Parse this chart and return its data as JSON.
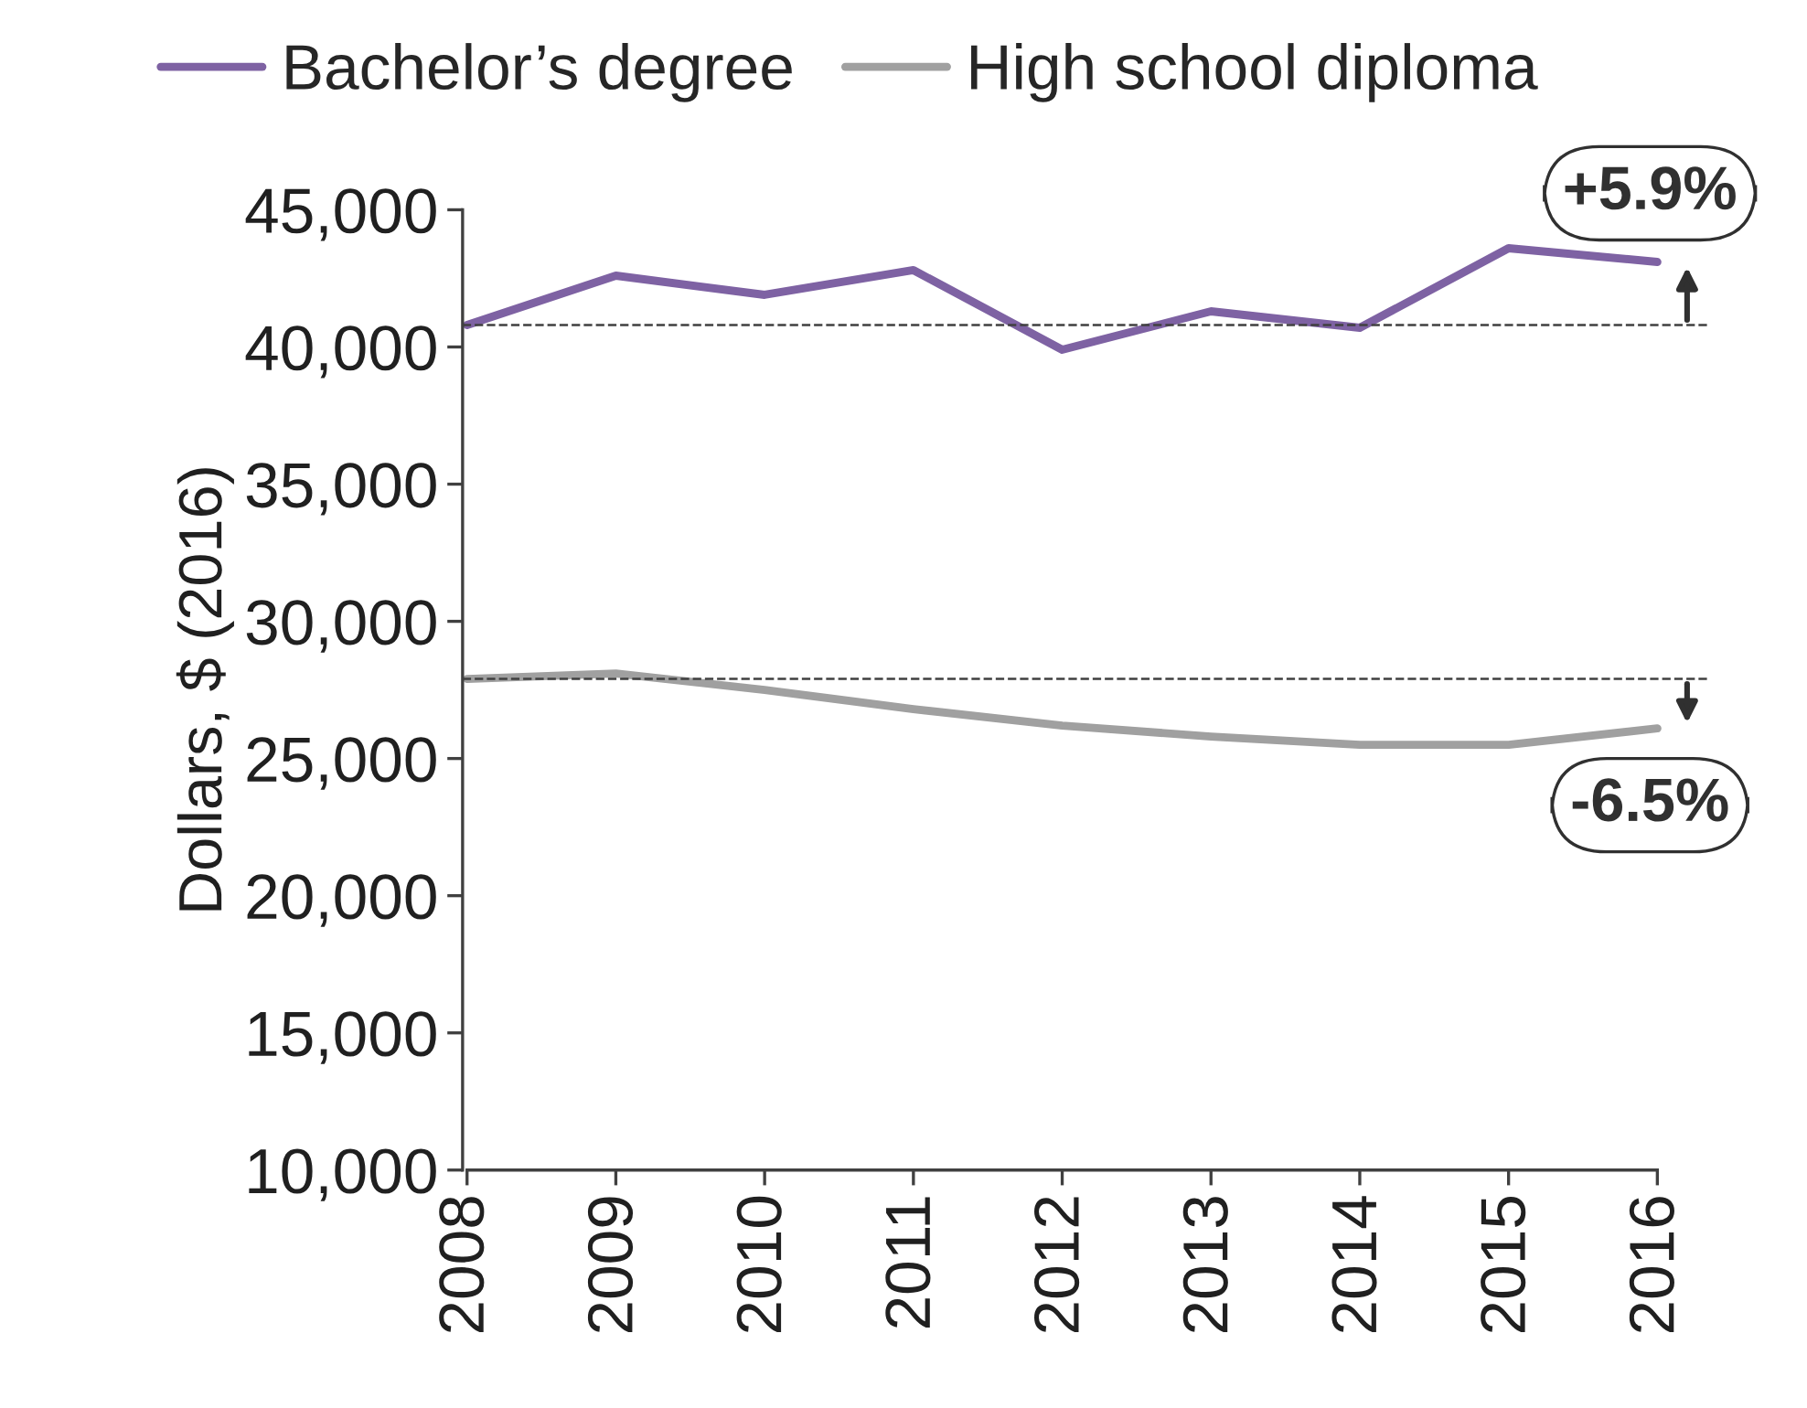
{
  "chart_data": {
    "type": "line",
    "ylabel": "Dollars, $ (2016)",
    "categories": [
      "2008",
      "2009",
      "2010",
      "2011",
      "2012",
      "2013",
      "2014",
      "2015",
      "2016"
    ],
    "series": [
      {
        "name": "Bachelor’s degree",
        "color": "#7e62a3",
        "values": [
          40800,
          42600,
          41900,
          42800,
          39900,
          41300,
          40700,
          43600,
          43100
        ]
      },
      {
        "name": "High school diploma",
        "color": "#a0a0a0",
        "values": [
          27900,
          28100,
          27500,
          26800,
          26200,
          25800,
          25500,
          25500,
          26100
        ]
      }
    ],
    "ylim": [
      10000,
      45000
    ],
    "yticks": [
      {
        "value": 10000,
        "label": "10,000"
      },
      {
        "value": 15000,
        "label": "15,000"
      },
      {
        "value": 20000,
        "label": "20,000"
      },
      {
        "value": 25000,
        "label": "25,000"
      },
      {
        "value": 30000,
        "label": "30,000"
      },
      {
        "value": 35000,
        "label": "35,000"
      },
      {
        "value": 40000,
        "label": "40,000"
      },
      {
        "value": 45000,
        "label": "45,000"
      }
    ],
    "ref_lines": [
      {
        "axis": "y",
        "value": 40800,
        "line_style": "dashed",
        "color": "#404040"
      },
      {
        "axis": "y",
        "value": 27900,
        "line_style": "dashed",
        "color": "#404040"
      }
    ],
    "annotations": [
      {
        "text": "+5.9%",
        "x": "2016",
        "y": 43100
      },
      {
        "text": "-6.5%",
        "x": "2016",
        "y": 26100
      }
    ],
    "legend": "top",
    "grid": false,
    "marker": "none",
    "line_style": "solid"
  }
}
